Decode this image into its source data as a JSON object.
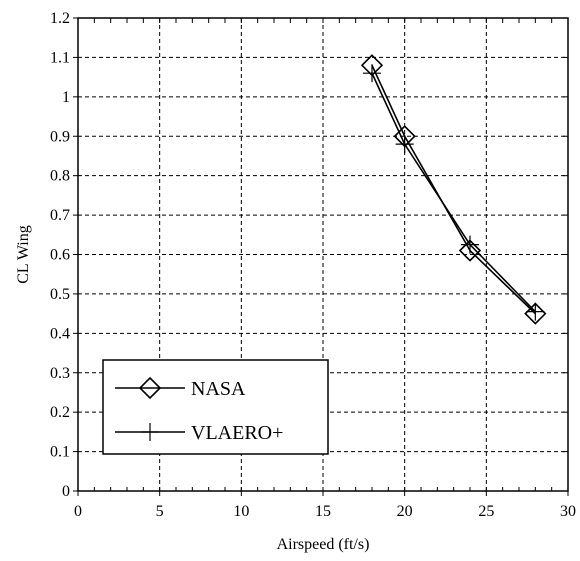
{
  "chart_data": {
    "type": "line",
    "xlabel": "Airspeed (ft/s)",
    "ylabel": "CL Wing",
    "xlim": [
      0,
      30
    ],
    "ylim": [
      0,
      1.2
    ],
    "xticks": [
      0,
      5,
      10,
      15,
      20,
      25,
      30
    ],
    "yticks": [
      0,
      0.1,
      0.2,
      0.3,
      0.4,
      0.5,
      0.6,
      0.7,
      0.8,
      0.9,
      1,
      1.1,
      1.2
    ],
    "x_tick_labels": [
      "0",
      "5",
      "10",
      "15",
      "20",
      "25",
      "30"
    ],
    "y_tick_labels": [
      "0",
      "0.1",
      "0.2",
      "0.3",
      "0.4",
      "0.5",
      "0.6",
      "0.7",
      "0.8",
      "0.9",
      "1",
      "1.1",
      "1.2"
    ],
    "grid": true,
    "legend_position": "bottom-left",
    "series": [
      {
        "name": "NASA",
        "marker": "diamond",
        "color": "#000000",
        "x": [
          18,
          20,
          24,
          28
        ],
        "y": [
          1.08,
          0.9,
          0.61,
          0.45
        ]
      },
      {
        "name": "VLAERO+",
        "marker": "plus",
        "color": "#000000",
        "x": [
          18,
          20,
          24,
          28
        ],
        "y": [
          1.06,
          0.88,
          0.625,
          0.455
        ]
      }
    ]
  }
}
